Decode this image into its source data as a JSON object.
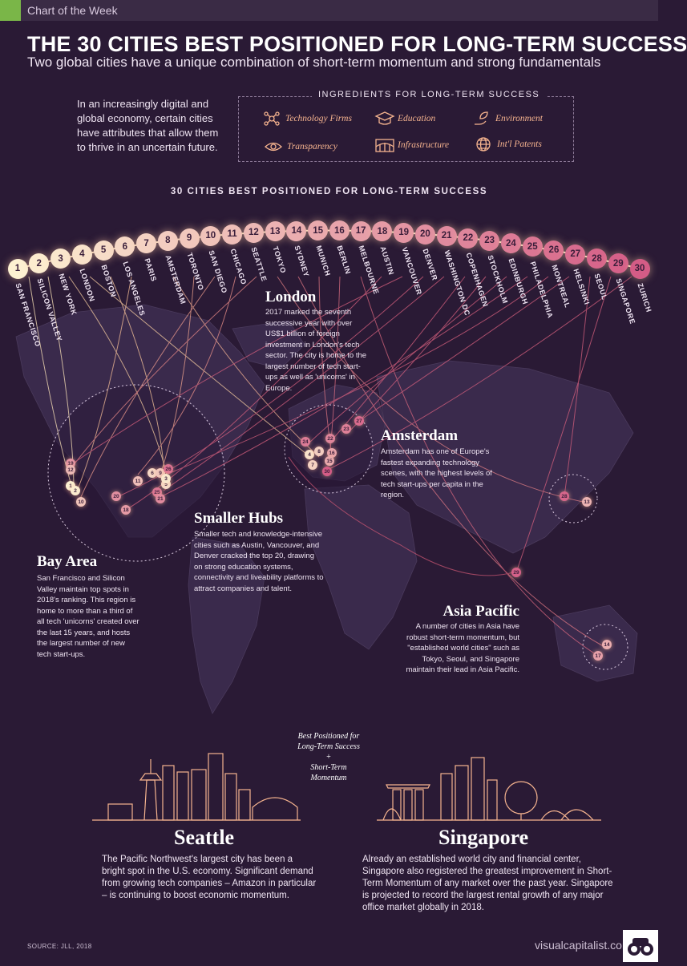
{
  "header": {
    "tag": "Chart of the Week",
    "title": "THE 30 CITIES BEST POSITIONED FOR LONG-TERM SUCCESS",
    "subtitle": "Two global cities have a unique combination of short-term momentum and strong fundamentals"
  },
  "intro": "In an increasingly digital and global economy, certain cities have attributes that allow them to thrive in an uncertain future.",
  "ingredients": {
    "title": "INGREDIENTS FOR LONG-TERM SUCCESS",
    "items": [
      {
        "label": "Technology Firms",
        "icon": "network-icon"
      },
      {
        "label": "Education",
        "icon": "graduation-cap-icon"
      },
      {
        "label": "Environment",
        "icon": "leaf-hand-icon"
      },
      {
        "label": "Transparency",
        "icon": "eye-icon"
      },
      {
        "label": "Infrastructure",
        "icon": "bridge-icon"
      },
      {
        "label": "Int'l Patents",
        "icon": "globe-icon"
      }
    ]
  },
  "ranking": {
    "heading": "30 CITIES BEST POSITIONED FOR LONG-TERM SUCCESS",
    "cities": [
      {
        "rank": "1",
        "name": "SAN FRANCISCO"
      },
      {
        "rank": "2",
        "name": "SILICON VALLEY"
      },
      {
        "rank": "3",
        "name": "NEW YORK"
      },
      {
        "rank": "4",
        "name": "LONDON"
      },
      {
        "rank": "5",
        "name": "BOSTON"
      },
      {
        "rank": "6",
        "name": "LOS ANGELES"
      },
      {
        "rank": "7",
        "name": "PARIS"
      },
      {
        "rank": "8",
        "name": "AMSTERDAM"
      },
      {
        "rank": "9",
        "name": "TORONTO"
      },
      {
        "rank": "10",
        "name": "SAN DIEGO"
      },
      {
        "rank": "11",
        "name": "CHICAGO"
      },
      {
        "rank": "12",
        "name": "SEATTLE"
      },
      {
        "rank": "13",
        "name": "TOKYO"
      },
      {
        "rank": "14",
        "name": "SYDNEY"
      },
      {
        "rank": "15",
        "name": "MUNICH"
      },
      {
        "rank": "16",
        "name": "BERLIN"
      },
      {
        "rank": "17",
        "name": "MELBOURNE"
      },
      {
        "rank": "18",
        "name": "AUSTIN"
      },
      {
        "rank": "19",
        "name": "VANCOUVER"
      },
      {
        "rank": "20",
        "name": "DENVER"
      },
      {
        "rank": "21",
        "name": "WASHINGTON DC"
      },
      {
        "rank": "22",
        "name": "COPENHAGEN"
      },
      {
        "rank": "23",
        "name": "STOCKHOLM"
      },
      {
        "rank": "24",
        "name": "EDINBURGH"
      },
      {
        "rank": "25",
        "name": "PHILADELPHIA"
      },
      {
        "rank": "26",
        "name": "MONTREAL"
      },
      {
        "rank": "27",
        "name": "HELSINKI"
      },
      {
        "rank": "28",
        "name": "SEOUL"
      },
      {
        "rank": "29",
        "name": "SINGAPORE"
      },
      {
        "rank": "30",
        "name": "ZURICH"
      }
    ]
  },
  "regions": {
    "london": {
      "title": "London",
      "text": "2017 marked the seventh successive year with over US$1 billion of foreign investment in London's tech sector. The city is home to the largest number of tech start-ups as well as 'unicorns' in Europe."
    },
    "amsterdam": {
      "title": "Amsterdam",
      "text": "Amsterdam has one of Europe's fastest expanding technology scenes, with the highest levels of tech start-ups per capita in the region."
    },
    "smaller_hubs": {
      "title": "Smaller Hubs",
      "text": "Smaller tech and knowledge-intensive cities such as Austin, Vancouver, and Denver cracked the top 20, drawing on strong education systems, connectivity and liveability platforms to attract companies and talent."
    },
    "bay_area": {
      "title": "Bay Area",
      "text": "San Francisco and Silicon Valley maintain top spots in 2018's ranking. This region is home to more than a third of all tech 'unicorns' created over the last 15 years, and hosts the largest number of new tech start-ups."
    },
    "asia_pacific": {
      "title": "Asia Pacific",
      "text": "A number of cities in Asia have robust short-term momentum, but \"established world cities\" such as Tokyo, Seoul, and Singapore maintain their lead in Asia Pacific."
    }
  },
  "map_markers": {
    "north_america": [
      "19",
      "12",
      "1",
      "2",
      "6",
      "10",
      "11",
      "9",
      "26",
      "5",
      "3",
      "25",
      "21",
      "20",
      "18"
    ],
    "europe": [
      "27",
      "23",
      "22",
      "24",
      "4",
      "8",
      "16",
      "15",
      "7",
      "30"
    ],
    "asia": [
      "28",
      "13",
      "29"
    ],
    "australia": [
      "14",
      "17"
    ]
  },
  "bottom": {
    "center_line1": "Best Positioned for",
    "center_line2": "Long-Term Success",
    "center_plus": "+",
    "center_line3": "Short-Term",
    "center_line4": "Momentum",
    "seattle_title": "Seattle",
    "seattle_text": "The Pacific Northwest's largest city has been a bright spot in the U.S. economy. Significant demand from growing tech companies – Amazon in particular – is continuing to boost economic momentum.",
    "singapore_title": "Singapore",
    "singapore_text": "Already an established world city and financial center, Singapore also registered the greatest improvement in Short-Term Momentum of any market over the past year. Singapore is projected to record the largest rental growth of any major office market globally in 2018."
  },
  "footer": {
    "source": "SOURCE: JLL, 2018",
    "site": "visualcapitalist.com"
  },
  "colors": {
    "background": "#2a1a35",
    "accent": "#f6b48f",
    "green": "#7ab648",
    "rank_start": "#fdf1d2",
    "rank_end": "#d45c86"
  }
}
